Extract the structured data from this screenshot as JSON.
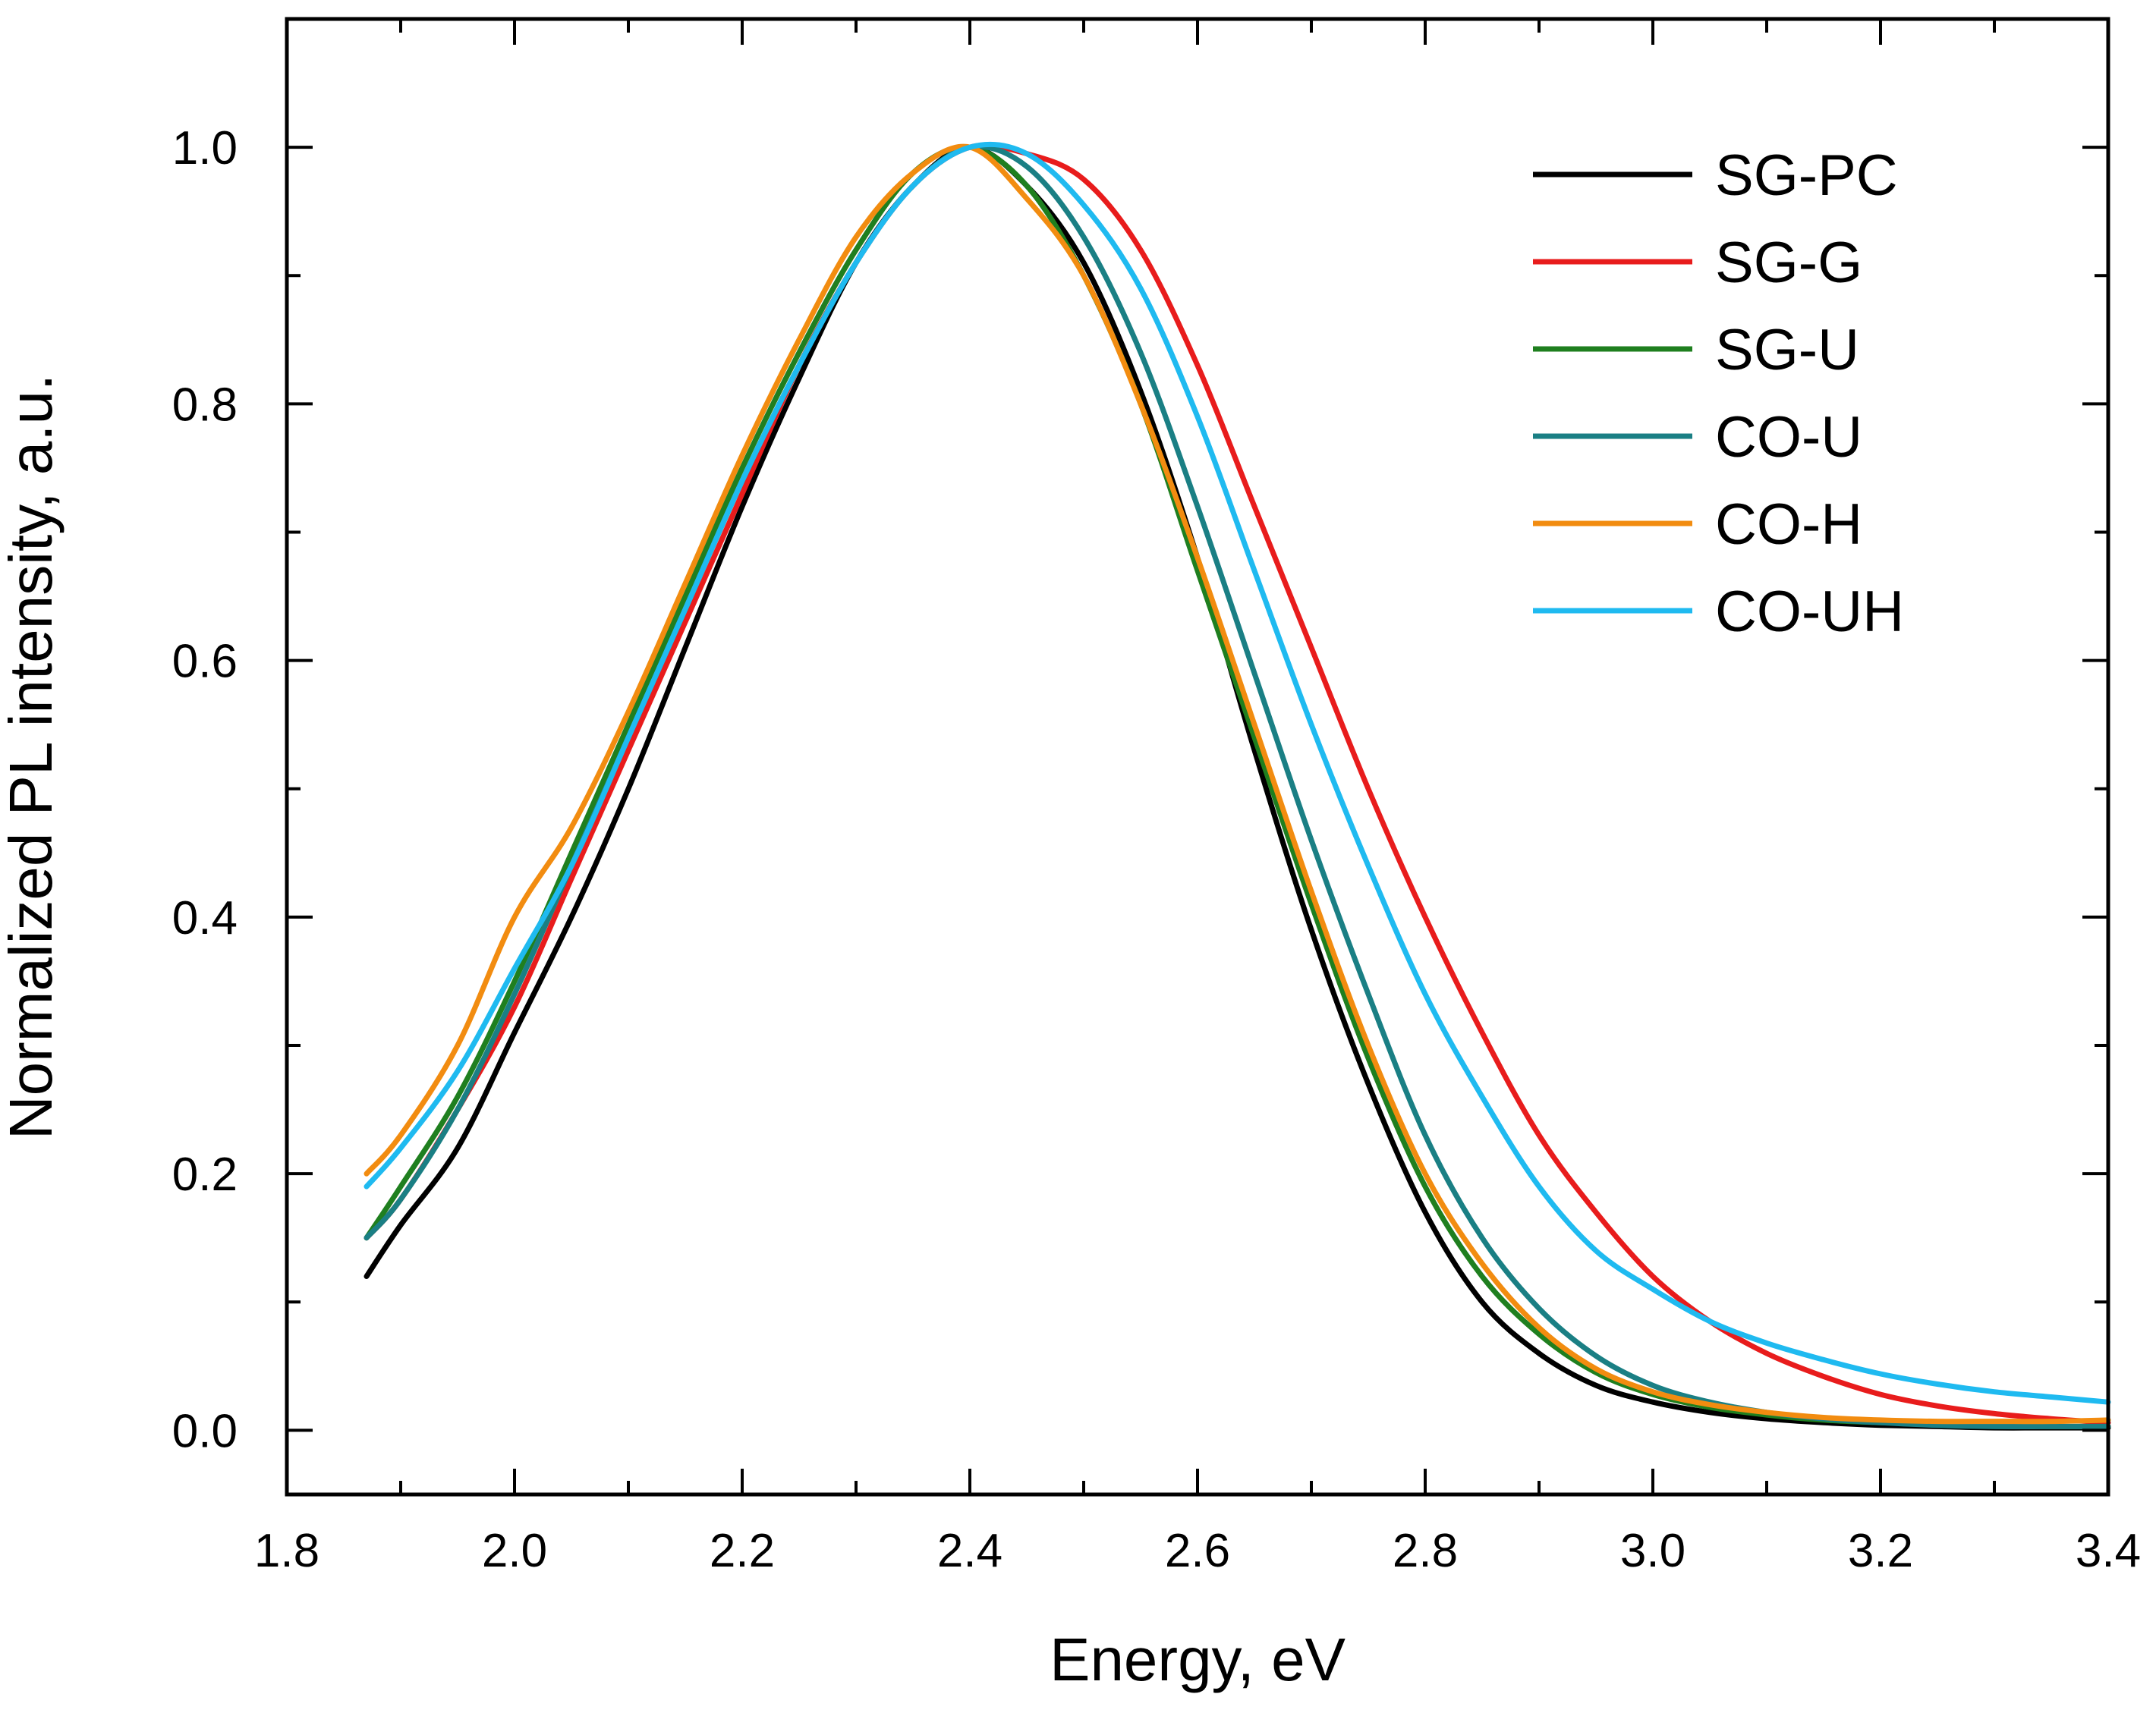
{
  "chart_data": {
    "type": "line",
    "title": "",
    "xlabel": "Energy, eV",
    "ylabel": "Normalized PL intensity, a.u.",
    "xlim": [
      1.8,
      3.4
    ],
    "ylim": [
      -0.05,
      1.1
    ],
    "xticks": [
      "1.8",
      "2.0",
      "2.2",
      "2.4",
      "2.6",
      "2.8",
      "3.0",
      "3.2",
      "3.4"
    ],
    "yticks": [
      "0.0",
      "0.2",
      "0.4",
      "0.6",
      "0.8",
      "1.0"
    ],
    "legend_position": "top-right",
    "x": [
      1.87,
      1.9,
      1.95,
      2.0,
      2.05,
      2.1,
      2.15,
      2.2,
      2.25,
      2.3,
      2.35,
      2.4,
      2.45,
      2.5,
      2.55,
      2.6,
      2.65,
      2.7,
      2.75,
      2.8,
      2.85,
      2.9,
      2.95,
      3.0,
      3.05,
      3.1,
      3.15,
      3.2,
      3.25,
      3.3,
      3.35,
      3.4
    ],
    "series": [
      {
        "name": "SG-PC",
        "color": "#000000",
        "values": [
          0.12,
          0.16,
          0.22,
          0.31,
          0.4,
          0.5,
          0.61,
          0.72,
          0.82,
          0.91,
          0.97,
          1.0,
          0.97,
          0.91,
          0.81,
          0.68,
          0.53,
          0.39,
          0.27,
          0.17,
          0.1,
          0.06,
          0.035,
          0.022,
          0.014,
          0.009,
          0.006,
          0.004,
          0.003,
          0.002,
          0.002,
          0.002
        ]
      },
      {
        "name": "SG-G",
        "color": "#e81c1c",
        "values": [
          0.15,
          0.18,
          0.25,
          0.33,
          0.43,
          0.53,
          0.63,
          0.73,
          0.83,
          0.91,
          0.97,
          1.0,
          0.995,
          0.975,
          0.92,
          0.83,
          0.72,
          0.61,
          0.5,
          0.4,
          0.31,
          0.23,
          0.17,
          0.12,
          0.085,
          0.06,
          0.042,
          0.028,
          0.019,
          0.013,
          0.009,
          0.006
        ]
      },
      {
        "name": "SG-U",
        "color": "#1f7f1f",
        "values": [
          0.15,
          0.19,
          0.26,
          0.35,
          0.45,
          0.55,
          0.65,
          0.75,
          0.84,
          0.92,
          0.98,
          1.0,
          0.97,
          0.9,
          0.8,
          0.67,
          0.54,
          0.41,
          0.29,
          0.19,
          0.12,
          0.075,
          0.045,
          0.028,
          0.018,
          0.012,
          0.008,
          0.006,
          0.005,
          0.004,
          0.003,
          0.003
        ]
      },
      {
        "name": "CO-U",
        "color": "#1a7f84",
        "values": [
          0.15,
          0.18,
          0.25,
          0.34,
          0.44,
          0.54,
          0.64,
          0.74,
          0.83,
          0.91,
          0.97,
          1.0,
          0.985,
          0.93,
          0.84,
          0.72,
          0.59,
          0.46,
          0.34,
          0.23,
          0.15,
          0.095,
          0.058,
          0.035,
          0.022,
          0.014,
          0.009,
          0.006,
          0.004,
          0.003,
          0.003,
          0.003
        ]
      },
      {
        "name": "CO-H",
        "color": "#f28c10",
        "values": [
          0.2,
          0.23,
          0.3,
          0.4,
          0.47,
          0.56,
          0.66,
          0.76,
          0.85,
          0.93,
          0.98,
          1.0,
          0.96,
          0.9,
          0.8,
          0.68,
          0.55,
          0.42,
          0.3,
          0.2,
          0.13,
          0.08,
          0.048,
          0.03,
          0.02,
          0.014,
          0.01,
          0.008,
          0.007,
          0.007,
          0.007,
          0.008
        ]
      },
      {
        "name": "CO-UH",
        "color": "#1fbaf0",
        "values": [
          0.19,
          0.22,
          0.28,
          0.36,
          0.44,
          0.54,
          0.64,
          0.74,
          0.83,
          0.91,
          0.97,
          1.0,
          0.995,
          0.955,
          0.89,
          0.79,
          0.67,
          0.55,
          0.44,
          0.34,
          0.26,
          0.19,
          0.14,
          0.11,
          0.085,
          0.068,
          0.055,
          0.044,
          0.036,
          0.03,
          0.026,
          0.022
        ]
      }
    ]
  }
}
